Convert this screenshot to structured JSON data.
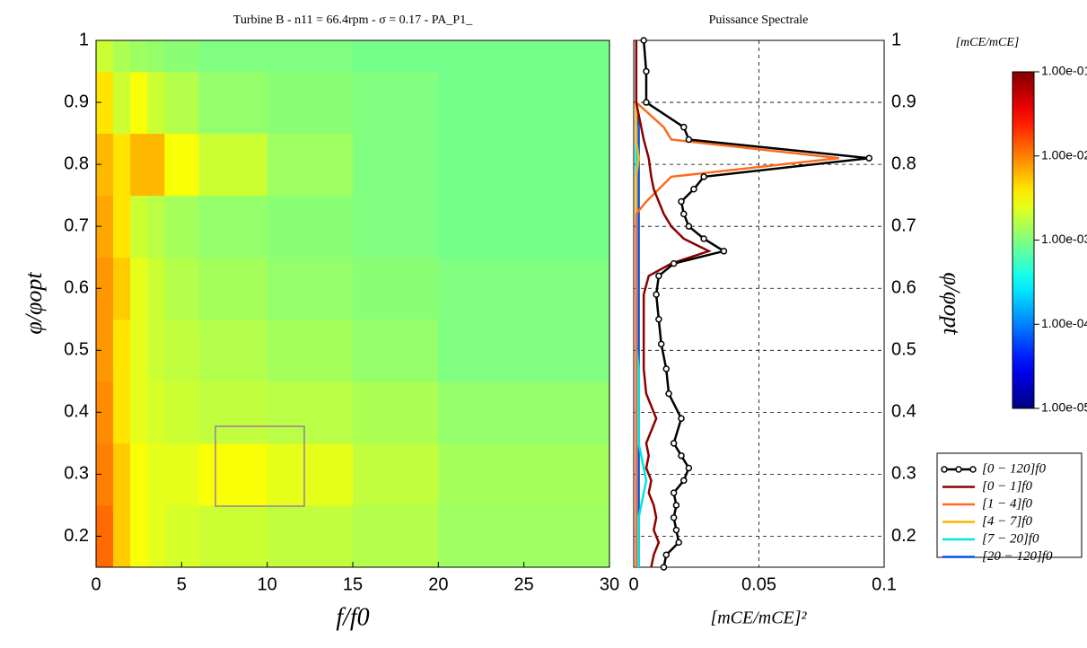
{
  "chart_data": [
    {
      "type": "heatmap",
      "title": "Turbine B - n11 = 66.4rpm - σ = 0.17 - PA_P1_",
      "xlabel": "f/f0",
      "ylabel": "φ/φopt",
      "x_edges": [
        0,
        1,
        2,
        3,
        4,
        6,
        10,
        15,
        20,
        30
      ],
      "y_edges": [
        0.15,
        0.25,
        0.35,
        0.45,
        0.55,
        0.65,
        0.75,
        0.85,
        0.95,
        1
      ],
      "z": [
        [
          0.012,
          0.005,
          0.003,
          0.0025,
          0.0022,
          0.002,
          0.0018,
          0.0016,
          0.0013
        ],
        [
          0.01,
          0.005,
          0.003,
          0.0025,
          0.0025,
          0.003,
          0.0025,
          0.0018,
          0.0014
        ],
        [
          0.009,
          0.004,
          0.0025,
          0.0022,
          0.002,
          0.0018,
          0.0017,
          0.0015,
          0.0012
        ],
        [
          0.008,
          0.004,
          0.0025,
          0.002,
          0.0018,
          0.0016,
          0.0014,
          0.0012,
          0.001
        ],
        [
          0.008,
          0.005,
          0.0025,
          0.002,
          0.0016,
          0.0014,
          0.0012,
          0.0011,
          0.001
        ],
        [
          0.007,
          0.004,
          0.002,
          0.0017,
          0.0014,
          0.0012,
          0.0011,
          0.001,
          0.0009
        ],
        [
          0.006,
          0.004,
          0.006,
          0.006,
          0.003,
          0.002,
          0.0013,
          0.001,
          0.0009
        ],
        [
          0.004,
          0.002,
          0.003,
          0.002,
          0.0016,
          0.0012,
          0.0011,
          0.001,
          0.0009
        ],
        [
          0.002,
          0.0015,
          0.0013,
          0.0012,
          0.0011,
          0.001,
          0.001,
          0.0009,
          0.0009
        ]
      ],
      "xlim": [
        0,
        30
      ],
      "xticks": [
        0,
        5,
        10,
        15,
        20,
        25,
        30
      ],
      "ylim": [
        0.15,
        1
      ],
      "yticks": [
        0.2,
        0.3,
        0.4,
        0.5,
        0.6,
        0.7,
        0.8,
        0.9,
        1
      ],
      "colormap": "jet",
      "colorbar": {
        "label": "[mCE/mCE]",
        "log_scale": true,
        "zlim": [
          1e-05,
          0.1
        ],
        "zticks": [
          {
            "value": 0.1,
            "label": "1.00e-01"
          },
          {
            "value": 0.01,
            "label": "1.00e-02"
          },
          {
            "value": 0.001,
            "label": "1.00e-03"
          },
          {
            "value": 0.0001,
            "label": "1.00e-04"
          },
          {
            "value": 1e-05,
            "label": "1.00e-05"
          }
        ]
      }
    },
    {
      "type": "line",
      "title": "Puissance Spectrale",
      "xlabel": "[mCE/mCE]²",
      "ylabel": "φ/φopt",
      "y": [
        0.15,
        0.17,
        0.19,
        0.21,
        0.23,
        0.25,
        0.27,
        0.29,
        0.31,
        0.33,
        0.35,
        0.39,
        0.43,
        0.47,
        0.51,
        0.55,
        0.59,
        0.62,
        0.64,
        0.66,
        0.68,
        0.7,
        0.72,
        0.74,
        0.76,
        0.78,
        0.81,
        0.84,
        0.86,
        0.9,
        0.95,
        1
      ],
      "series": [
        {
          "name": "[0 − 120]f0",
          "color": "#000000",
          "markers": true,
          "values": [
            0.012,
            0.013,
            0.018,
            0.017,
            0.016,
            0.017,
            0.016,
            0.02,
            0.022,
            0.019,
            0.016,
            0.019,
            0.014,
            0.013,
            0.011,
            0.01,
            0.009,
            0.01,
            0.016,
            0.036,
            0.028,
            0.022,
            0.02,
            0.019,
            0.024,
            0.028,
            0.094,
            0.022,
            0.02,
            0.005,
            0.005,
            0.004
          ]
        },
        {
          "name": "[0 − 1]f0",
          "color": "#8b0000",
          "values": [
            0.007,
            0.008,
            0.01,
            0.008,
            0.009,
            0.008,
            0.006,
            0.007,
            0.005,
            0.006,
            0.005,
            0.009,
            0.005,
            0.004,
            0.004,
            0.004,
            0.004,
            0.006,
            0.015,
            0.03,
            0.02,
            0.015,
            0.012,
            0.01,
            0.008,
            0.007,
            0.006,
            0.004,
            0.003,
            0.001,
            0.001,
            0.001
          ]
        },
        {
          "name": "[1 − 4]f0",
          "color": "#ff6a1f",
          "values": [
            0.001,
            0.001,
            0.001,
            0.001,
            0.001,
            0.001,
            0.001,
            0.001,
            0.001,
            0.001,
            0.001,
            0.001,
            0.001,
            0.001,
            0.001,
            0.001,
            0.001,
            0.001,
            0.001,
            0.001,
            0.001,
            0.001,
            0.001,
            0.005,
            0.01,
            0.015,
            0.082,
            0.015,
            0.012,
            0.001,
            0.001,
            0.001
          ]
        },
        {
          "name": "[4 − 7]f0",
          "color": "#ffb300",
          "values": [
            0.001,
            0.001,
            0.001,
            0.001,
            0.001,
            0.001,
            0.001,
            0.001,
            0.001,
            0.001,
            0.001,
            0.001,
            0.001,
            0.001,
            0.001,
            0.001,
            0.001,
            0.001,
            0.001,
            0.001,
            0.001,
            0.001,
            0.001,
            0.001,
            0.001,
            0.001,
            0.002,
            0.001,
            0.001,
            0.001,
            0.001,
            0.001
          ]
        },
        {
          "name": "[7 − 20]f0",
          "color": "#00e5e5",
          "values": [
            0.002,
            0.002,
            0.002,
            0.002,
            0.002,
            0.003,
            0.004,
            0.005,
            0.004,
            0.003,
            0.002,
            0.002,
            0.002,
            0.002,
            0.001,
            0.001,
            0.001,
            0.001,
            0.001,
            0.001,
            0.001,
            0.001,
            0.001,
            0.001,
            0.001,
            0.001,
            0.001,
            0.001,
            0.001,
            0.001,
            0.001,
            0.001
          ]
        },
        {
          "name": "[20 − 120]f0",
          "color": "#0050e6",
          "values": [
            0.002,
            0.002,
            0.002,
            0.002,
            0.002,
            0.002,
            0.002,
            0.002,
            0.002,
            0.002,
            0.002,
            0.002,
            0.002,
            0.002,
            0.002,
            0.002,
            0.002,
            0.002,
            0.002,
            0.002,
            0.002,
            0.002,
            0.002,
            0.002,
            0.002,
            0.002,
            0.002,
            0.002,
            0.002,
            0.001,
            0.001,
            0.001
          ]
        }
      ],
      "xlim": [
        0,
        0.1
      ],
      "xticks": [
        0,
        0.05,
        0.1
      ],
      "ylim": [
        0.15,
        1
      ],
      "yticks": [
        0.2,
        0.3,
        0.4,
        0.5,
        0.6,
        0.7,
        0.8,
        0.9,
        1
      ],
      "grid": true
    }
  ]
}
